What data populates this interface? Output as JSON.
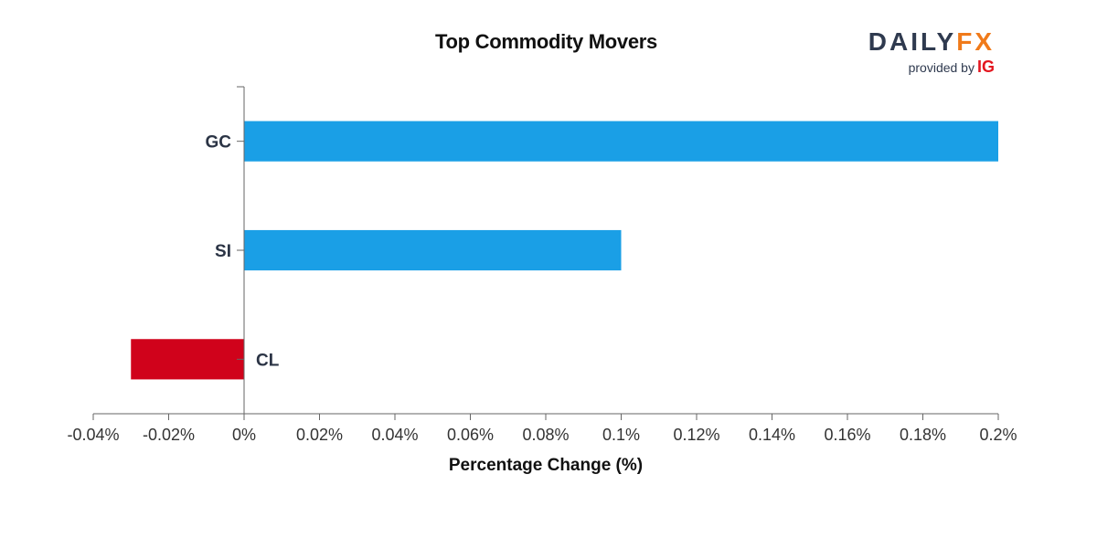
{
  "header": {
    "title": "Top Commodity Movers"
  },
  "logo": {
    "brand_part1": "DAILY",
    "brand_part2": "FX",
    "provided_by": "provided by",
    "ig": "IG"
  },
  "chart_data": {
    "type": "bar",
    "orientation": "horizontal",
    "title": "Top Commodity Movers",
    "xlabel": "Percentage Change (%)",
    "ylabel": "",
    "categories": [
      "GC",
      "SI",
      "CL"
    ],
    "values": [
      0.2,
      0.1,
      -0.03
    ],
    "xlim": [
      -0.04,
      0.2
    ],
    "xticks": [
      -0.04,
      -0.02,
      0,
      0.02,
      0.04,
      0.06,
      0.08,
      0.1,
      0.12,
      0.14,
      0.16,
      0.18,
      0.2
    ],
    "xtick_labels": [
      "-0.04%",
      "-0.02%",
      "0%",
      "0.02%",
      "0.04%",
      "0.06%",
      "0.08%",
      "0.1%",
      "0.12%",
      "0.14%",
      "0.16%",
      "0.18%",
      "0.2%"
    ],
    "colors": {
      "positive": "#1a9fe6",
      "negative": "#d0021b"
    },
    "grid": false,
    "legend": "none"
  }
}
